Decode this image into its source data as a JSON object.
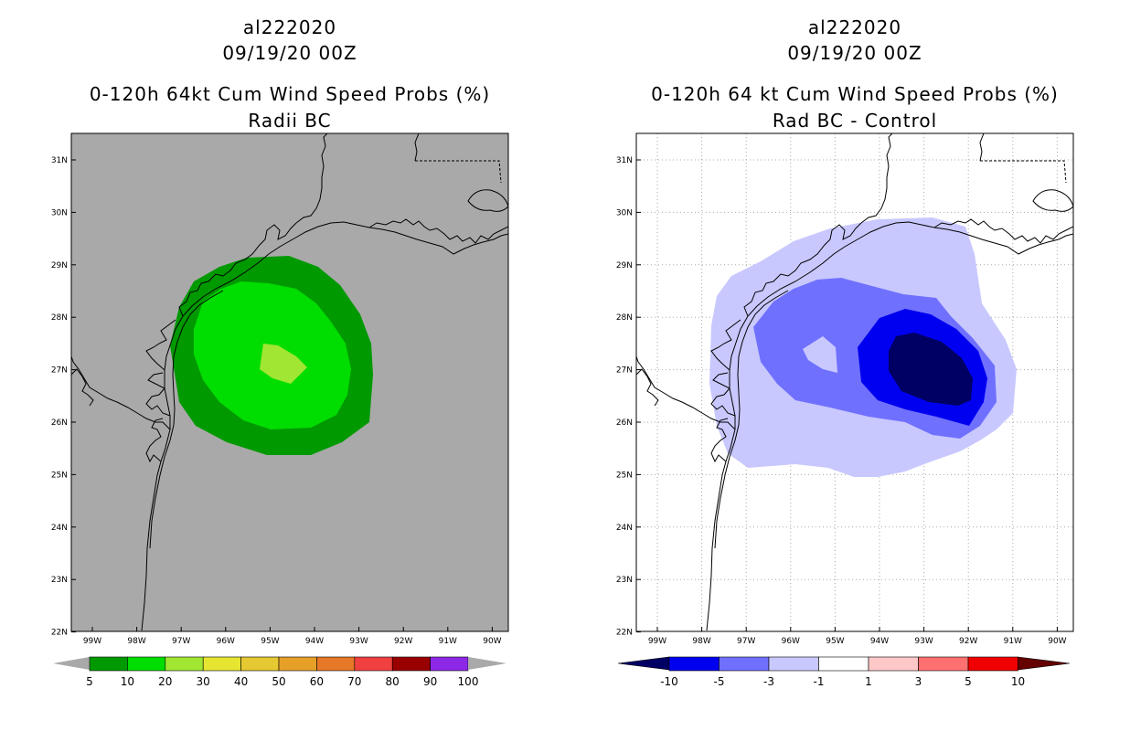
{
  "left_panel": {
    "title_line1": "al222020",
    "title_line2": "09/19/20 00Z",
    "title_line3": "0-120h 64kt Cum Wind Speed Probs (%)",
    "title_line4": "Radii BC",
    "background_color": "#a9a9a9",
    "colorbar": {
      "labels": [
        "5",
        "10",
        "20",
        "30",
        "40",
        "50",
        "60",
        "70",
        "80",
        "90",
        "100"
      ],
      "colors": [
        "#009900",
        "#00dd00",
        "#a0e632",
        "#e6e632",
        "#e6c832",
        "#e6a028",
        "#e67828",
        "#f04040",
        "#990000",
        "#8c28e6"
      ],
      "end_arrow_color": "#a9a9a9"
    },
    "contours": [
      {
        "level": "5-10",
        "color": "#009900"
      },
      {
        "level": "10-20",
        "color": "#00dd00"
      },
      {
        "level": "20-30",
        "color": "#a0e632"
      }
    ]
  },
  "right_panel": {
    "title_line1": "al222020",
    "title_line2": "09/19/20 00Z",
    "title_line3": "0-120h 64 kt Cum Wind Speed Probs (%)",
    "title_line4": "Rad BC - Control",
    "background_color": "#ffffff",
    "colorbar": {
      "labels": [
        "-10",
        "-5",
        "-3",
        "-1",
        "1",
        "3",
        "5",
        "10"
      ],
      "colors": [
        "#000064",
        "#0000f0",
        "#7070ff",
        "#c8c8ff",
        "#ffffff",
        "#ffc8c8",
        "#ff7070",
        "#f00000",
        "#640000"
      ]
    },
    "contours": [
      {
        "level": "-1 to -3",
        "color": "#c8c8ff"
      },
      {
        "level": "-3 to -5",
        "color": "#7070ff"
      },
      {
        "level": "-5 to -10",
        "color": "#0000f0"
      },
      {
        "level": "< -10",
        "color": "#000064"
      }
    ]
  },
  "axes": {
    "lat_labels": [
      "31N",
      "30N",
      "29N",
      "28N",
      "27N",
      "26N",
      "25N",
      "24N",
      "23N",
      "22N"
    ],
    "lon_labels": [
      "99W",
      "98W",
      "97W",
      "96W",
      "95W",
      "94W",
      "93W",
      "92W",
      "91W",
      "90W"
    ]
  }
}
